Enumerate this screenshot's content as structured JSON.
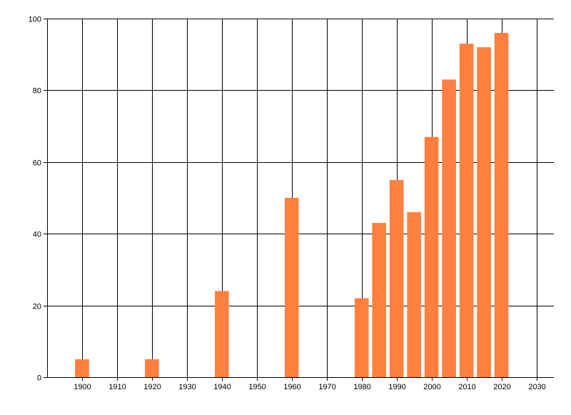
{
  "chart_data": {
    "type": "bar",
    "title": "",
    "xlabel": "",
    "ylabel": "",
    "x": [
      1900,
      1920,
      1940,
      1960,
      1980,
      1985,
      1990,
      1995,
      2000,
      2005,
      2010,
      2015,
      2020
    ],
    "values": [
      5,
      5,
      24,
      50,
      22,
      43,
      55,
      46,
      67,
      83,
      93,
      92,
      96
    ],
    "xlim": [
      1890,
      2035
    ],
    "ylim": [
      0,
      100
    ],
    "xticks": [
      1900,
      1910,
      1920,
      1930,
      1940,
      1950,
      1960,
      1970,
      1980,
      1990,
      2000,
      2010,
      2020,
      2030
    ],
    "yticks": [
      0,
      20,
      40,
      60,
      80,
      100
    ],
    "grid": true,
    "legend": "none",
    "bar_width_years": 4
  },
  "colors": {
    "bar": "#FF7F3F",
    "grid": "#000000",
    "axis": "#000000",
    "background": "#FFFFFF"
  }
}
